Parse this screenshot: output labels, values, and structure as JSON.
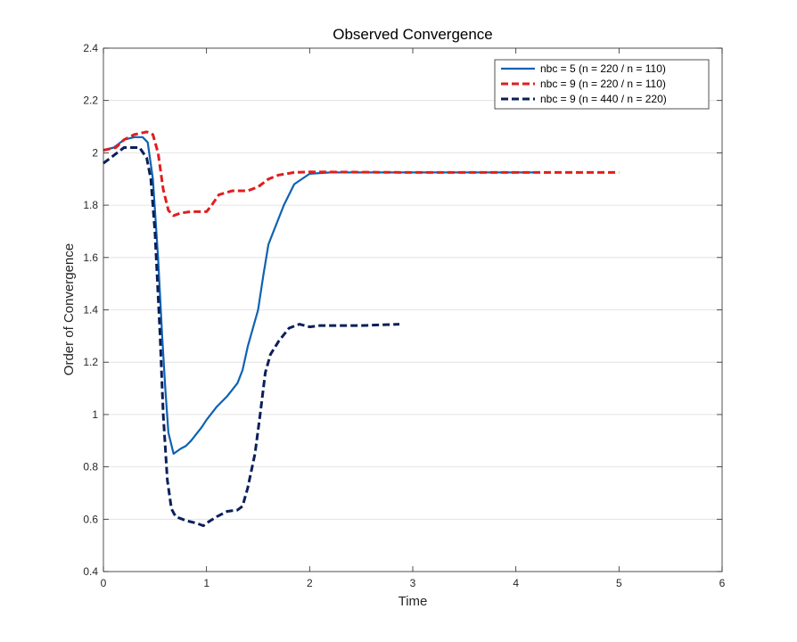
{
  "chart_data": {
    "type": "line",
    "title": "Observed Convergence",
    "xlabel": "Time",
    "ylabel": "Order of Convergence",
    "xlim": [
      0,
      6
    ],
    "ylim": [
      0.4,
      2.4
    ],
    "xticks": [
      0,
      1,
      2,
      3,
      4,
      5,
      6
    ],
    "xtick_labels": [
      "0",
      "1",
      "2",
      "3",
      "4",
      "5",
      "6"
    ],
    "yticks": [
      0.4,
      0.6,
      0.8,
      1.0,
      1.2,
      1.4,
      1.6,
      1.8,
      2.0,
      2.2,
      2.4
    ],
    "ytick_labels": [
      "0.4",
      "0.6",
      "0.8",
      "1",
      "1.2",
      "1.4",
      "1.6",
      "1.8",
      "2",
      "2.2",
      "2.4"
    ],
    "grid": "horizontal",
    "legend_position": "top-right",
    "series": [
      {
        "name": "nbc = 5 (n = 220 / n = 110)",
        "color": "#0e62b2",
        "dash": "solid",
        "points": [
          [
            0.0,
            2.01
          ],
          [
            0.1,
            2.02
          ],
          [
            0.2,
            2.05
          ],
          [
            0.3,
            2.06
          ],
          [
            0.38,
            2.06
          ],
          [
            0.43,
            2.04
          ],
          [
            0.48,
            1.9
          ],
          [
            0.53,
            1.6
          ],
          [
            0.57,
            1.3
          ],
          [
            0.6,
            1.1
          ],
          [
            0.63,
            0.93
          ],
          [
            0.68,
            0.85
          ],
          [
            0.75,
            0.87
          ],
          [
            0.8,
            0.88
          ],
          [
            0.85,
            0.9
          ],
          [
            0.95,
            0.95
          ],
          [
            1.0,
            0.98
          ],
          [
            1.1,
            1.03
          ],
          [
            1.2,
            1.07
          ],
          [
            1.3,
            1.12
          ],
          [
            1.35,
            1.17
          ],
          [
            1.4,
            1.26
          ],
          [
            1.5,
            1.4
          ],
          [
            1.55,
            1.53
          ],
          [
            1.6,
            1.65
          ],
          [
            1.65,
            1.7
          ],
          [
            1.75,
            1.8
          ],
          [
            1.85,
            1.88
          ],
          [
            2.0,
            1.92
          ],
          [
            2.2,
            1.925
          ],
          [
            3.0,
            1.925
          ],
          [
            4.2,
            1.925
          ]
        ]
      },
      {
        "name": "nbc = 9 (n = 220 / n = 110)",
        "color": "#e01e1e",
        "dash": "dashed",
        "points": [
          [
            0.0,
            2.01
          ],
          [
            0.12,
            2.02
          ],
          [
            0.2,
            2.05
          ],
          [
            0.3,
            2.07
          ],
          [
            0.42,
            2.08
          ],
          [
            0.48,
            2.07
          ],
          [
            0.53,
            2.0
          ],
          [
            0.58,
            1.86
          ],
          [
            0.63,
            1.78
          ],
          [
            0.68,
            1.76
          ],
          [
            0.75,
            1.77
          ],
          [
            0.85,
            1.775
          ],
          [
            1.0,
            1.775
          ],
          [
            1.05,
            1.8
          ],
          [
            1.12,
            1.84
          ],
          [
            1.25,
            1.855
          ],
          [
            1.4,
            1.855
          ],
          [
            1.5,
            1.87
          ],
          [
            1.6,
            1.9
          ],
          [
            1.7,
            1.915
          ],
          [
            1.85,
            1.925
          ],
          [
            2.0,
            1.927
          ],
          [
            3.0,
            1.925
          ],
          [
            4.0,
            1.925
          ],
          [
            5.0,
            1.925
          ]
        ]
      },
      {
        "name": "nbc = 9 (n = 440 / n = 220)",
        "color": "#0b1f5a",
        "dash": "dashed",
        "points": [
          [
            0.0,
            1.96
          ],
          [
            0.1,
            1.99
          ],
          [
            0.2,
            2.02
          ],
          [
            0.3,
            2.02
          ],
          [
            0.35,
            2.02
          ],
          [
            0.42,
            1.98
          ],
          [
            0.46,
            1.9
          ],
          [
            0.5,
            1.7
          ],
          [
            0.55,
            1.3
          ],
          [
            0.58,
            1.0
          ],
          [
            0.62,
            0.75
          ],
          [
            0.66,
            0.64
          ],
          [
            0.7,
            0.61
          ],
          [
            0.8,
            0.595
          ],
          [
            0.9,
            0.585
          ],
          [
            0.97,
            0.575
          ],
          [
            1.02,
            0.59
          ],
          [
            1.1,
            0.61
          ],
          [
            1.2,
            0.63
          ],
          [
            1.3,
            0.635
          ],
          [
            1.35,
            0.65
          ],
          [
            1.4,
            0.72
          ],
          [
            1.47,
            0.85
          ],
          [
            1.52,
            1.0
          ],
          [
            1.57,
            1.16
          ],
          [
            1.62,
            1.23
          ],
          [
            1.7,
            1.28
          ],
          [
            1.8,
            1.33
          ],
          [
            1.9,
            1.345
          ],
          [
            2.0,
            1.335
          ],
          [
            2.1,
            1.34
          ],
          [
            2.3,
            1.34
          ],
          [
            2.5,
            1.34
          ],
          [
            2.87,
            1.345
          ]
        ]
      }
    ]
  }
}
